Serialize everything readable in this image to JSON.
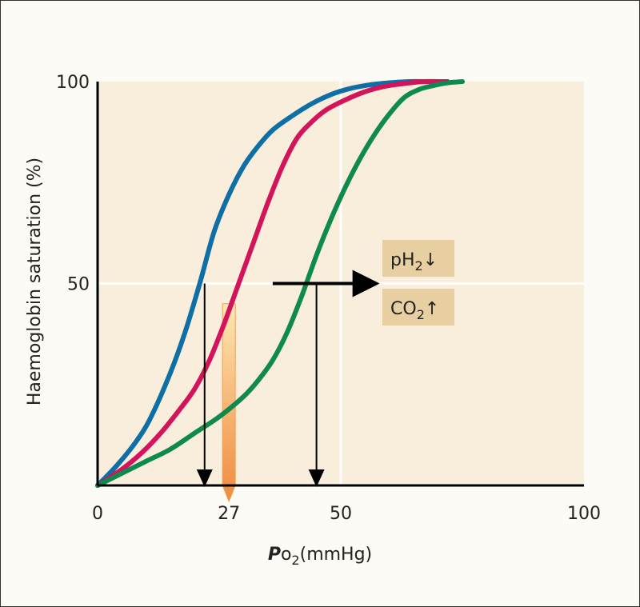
{
  "chart_data": {
    "type": "line",
    "xlabel": {
      "italic_bold": "P",
      "rest": "o",
      "sub": "2",
      "unit": "(mmHg)"
    },
    "ylabel": "Haemoglobin saturation (%)",
    "xlim": [
      0,
      100
    ],
    "ylim": [
      0,
      100
    ],
    "x_ticks": [
      "0",
      "27",
      "50",
      "100"
    ],
    "x_tick_values": [
      0,
      27,
      50,
      100
    ],
    "y_ticks": [
      "50",
      "100"
    ],
    "y_tick_values": [
      50,
      100
    ],
    "grid": {
      "x": [
        50
      ],
      "y": [
        50
      ]
    },
    "colors": {
      "plot_bg": "#f9eedb",
      "grid": "#ffffff",
      "box": "#e8cfa2",
      "left_curve": "#0d6fa6",
      "middle_curve": "#d4145a",
      "right_curve": "#0f8a4e"
    },
    "series": [
      {
        "x": [
          0,
          4,
          8,
          11,
          15,
          18,
          21,
          24,
          27,
          30,
          33,
          36,
          40,
          44,
          48,
          52,
          56,
          60,
          64,
          68,
          71
        ],
        "y": [
          0,
          5,
          11,
          17,
          28,
          38,
          50,
          63,
          72,
          79,
          84,
          88,
          91.5,
          94.5,
          96.8,
          98.3,
          99.2,
          99.7,
          100,
          100,
          100
        ]
      },
      {
        "x": [
          0,
          5,
          9,
          13,
          17,
          20,
          23,
          26,
          29,
          32,
          35,
          38,
          41,
          44,
          47,
          51,
          55,
          59,
          63,
          67,
          70,
          72
        ],
        "y": [
          0,
          4,
          8,
          13,
          19,
          24,
          31,
          40,
          50,
          60,
          70,
          79,
          86,
          90,
          93,
          95.5,
          97.5,
          98.8,
          99.5,
          100,
          100,
          100
        ]
      },
      {
        "x": [
          0,
          5,
          10,
          15,
          20,
          25,
          30,
          33,
          36,
          39,
          42,
          45,
          48,
          51,
          54,
          57,
          60,
          63,
          66,
          69,
          72,
          75
        ],
        "y": [
          0,
          3,
          6,
          9,
          13,
          17,
          22,
          26,
          31,
          38,
          47,
          57,
          66,
          74,
          81,
          87,
          92,
          96,
          98,
          99,
          99.7,
          100
        ]
      }
    ],
    "markers": {
      "p50_arrows": [
        {
          "x": 22,
          "from_y": 50,
          "to_y": 0
        },
        {
          "x": 45,
          "from_y": 50,
          "to_y": 0
        }
      ],
      "shift_arrow": {
        "from_x": 36,
        "to_x": 58,
        "y": 50
      },
      "highlight_bar": {
        "x": 27,
        "from_y": 45,
        "to_y": 0
      }
    },
    "annotations": {
      "ph": {
        "main": "pH",
        "sub": "2",
        "arrow": "↓"
      },
      "co2": {
        "main": "CO",
        "sub": "2",
        "arrow": "↑"
      }
    }
  }
}
